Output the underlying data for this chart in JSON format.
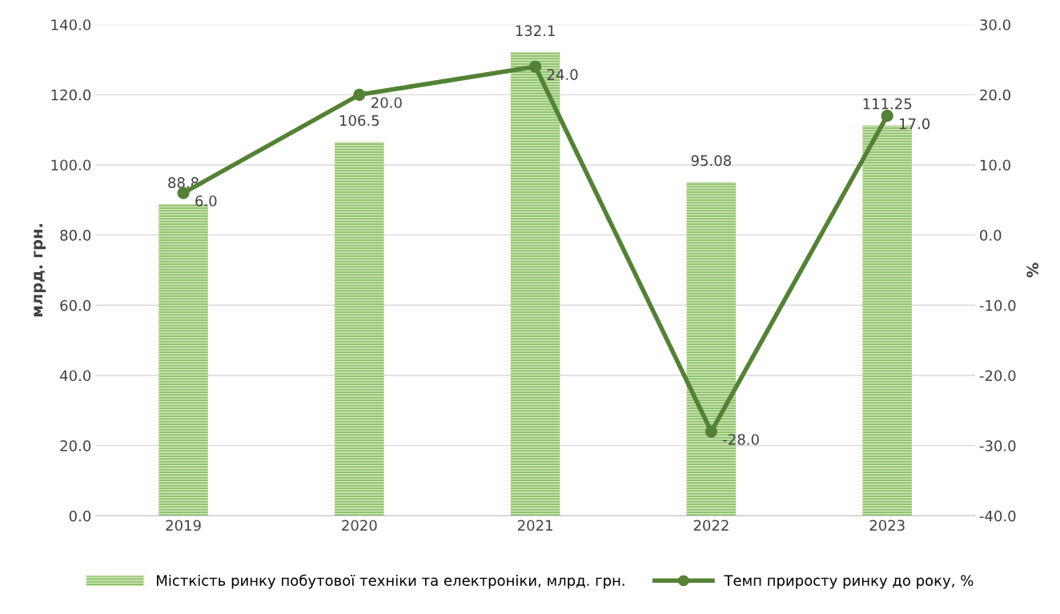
{
  "chart_data": {
    "type": "bar",
    "categories": [
      "2019",
      "2020",
      "2021",
      "2022",
      "2023"
    ],
    "series": [
      {
        "name": "Місткість ринку побутової техніки та електроніки, млрд. грн.",
        "color": "#8cc168",
        "values": [
          88.8,
          106.5,
          132.1,
          95.08,
          111.25
        ],
        "value_labels": [
          "88.8",
          "106.5",
          "132.1",
          "95.08",
          "111.25"
        ]
      },
      {
        "name": "Темп приросту ринку до року, %",
        "type": "line",
        "axis": "y2",
        "color": "#548235",
        "values": [
          6.0,
          20.0,
          24.0,
          -28.0,
          17.0
        ],
        "value_labels": [
          "6.0",
          "20.0",
          "24.0",
          "-28.0",
          "17.0"
        ]
      }
    ],
    "ylabel": "млрд. грн.",
    "y2label": "%",
    "ylim": [
      0,
      140
    ],
    "yticks": [
      {
        "value": 0,
        "label": "0.0"
      },
      {
        "value": 20,
        "label": "20.0"
      },
      {
        "value": 40,
        "label": "40.0"
      },
      {
        "value": 60,
        "label": "60.0"
      },
      {
        "value": 80,
        "label": "80.0"
      },
      {
        "value": 100,
        "label": "100.0"
      },
      {
        "value": 120,
        "label": "120.0"
      },
      {
        "value": 140,
        "label": "140.0"
      }
    ],
    "y2lim": [
      -40,
      30
    ],
    "y2ticks": [
      {
        "value": -40,
        "label": "-40.0"
      },
      {
        "value": -30,
        "label": "-30.0"
      },
      {
        "value": -20,
        "label": "-20.0"
      },
      {
        "value": -10,
        "label": "-10.0"
      },
      {
        "value": 0,
        "label": "0.0"
      },
      {
        "value": 10,
        "label": "10.0"
      },
      {
        "value": 20,
        "label": "20.0"
      },
      {
        "value": 30,
        "label": "30.0"
      }
    ],
    "grid": "y",
    "legend": "bottom",
    "marker": "circle",
    "line_style": "solid"
  }
}
